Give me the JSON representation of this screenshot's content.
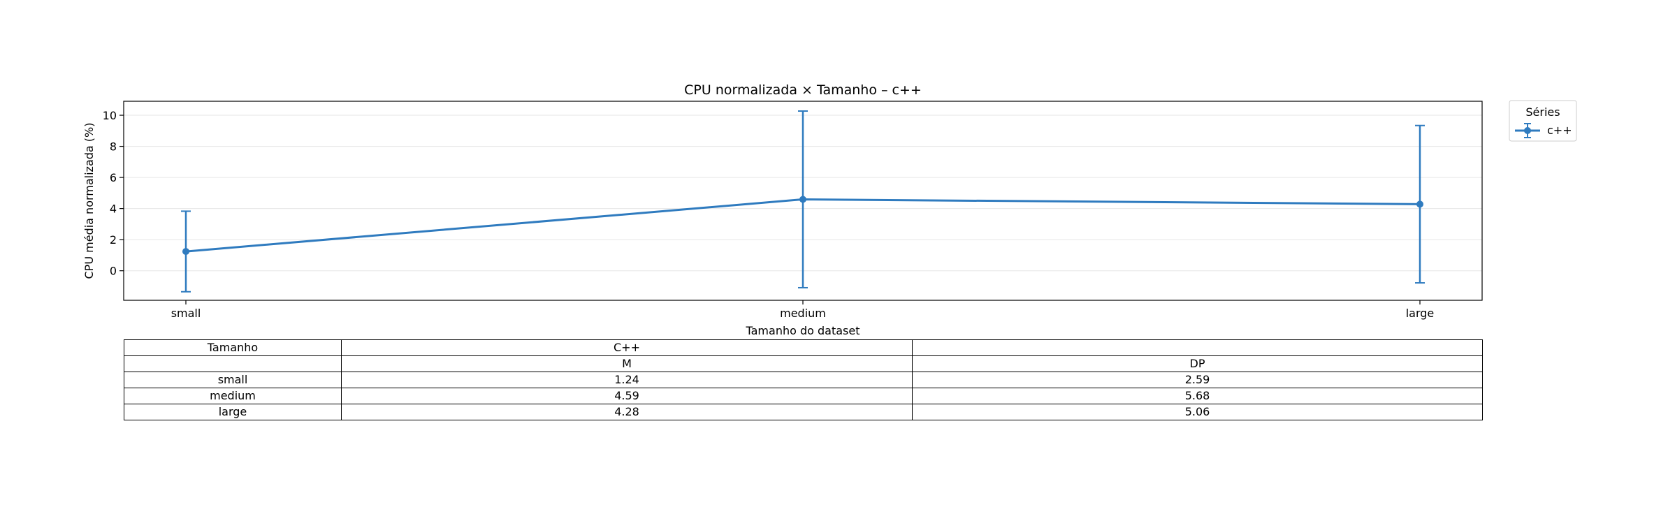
{
  "chart_data": {
    "type": "line",
    "title": "CPU normalizada × Tamanho – c++",
    "xlabel": "Tamanho do dataset",
    "ylabel": "CPU média normalizada (%)",
    "categories": [
      "small",
      "medium",
      "large"
    ],
    "ylim": [
      -1.9,
      10.9
    ],
    "yticks": [
      0,
      2,
      4,
      6,
      8,
      10
    ],
    "grid": "horizontal",
    "legend": {
      "title": "Séries",
      "placement": "outside-top-right"
    },
    "series": [
      {
        "name": "c++",
        "values": [
          1.24,
          4.59,
          4.28
        ],
        "errors": [
          2.59,
          5.68,
          5.06
        ],
        "color": "#2f7bbf"
      }
    ]
  },
  "table": {
    "header1": [
      "Tamanho",
      "C++",
      ""
    ],
    "header2": [
      "",
      "M",
      "DP"
    ],
    "rows": [
      [
        "small",
        "1.24",
        "2.59"
      ],
      [
        "medium",
        "4.59",
        "5.68"
      ],
      [
        "large",
        "4.28",
        "5.06"
      ]
    ]
  }
}
